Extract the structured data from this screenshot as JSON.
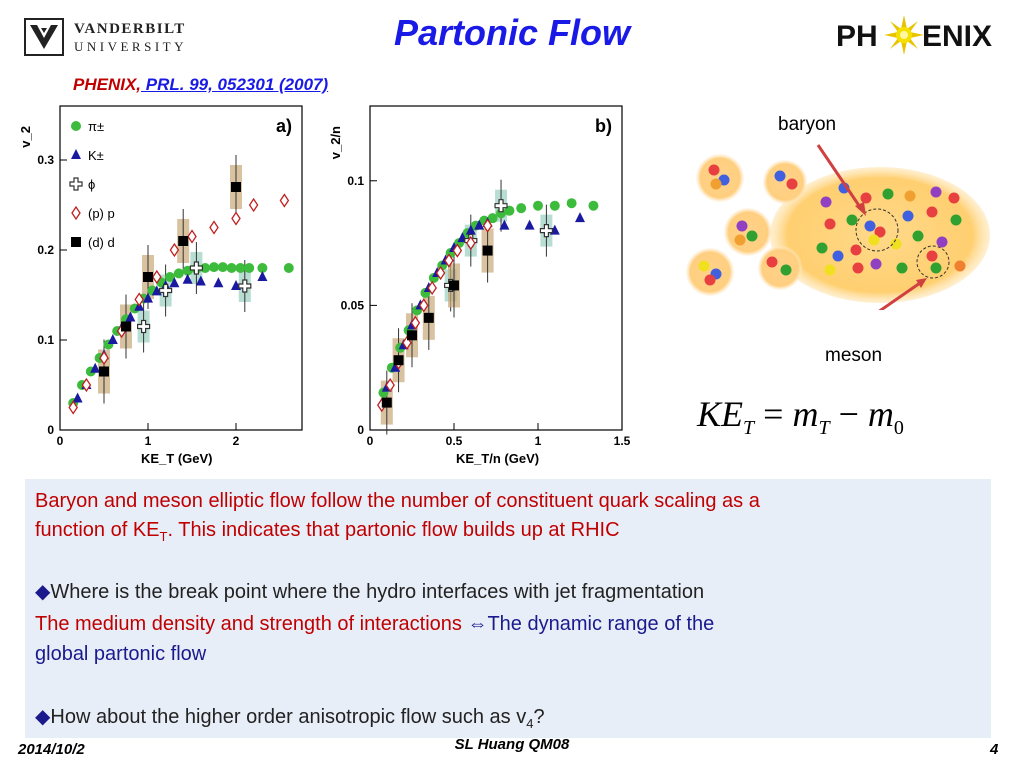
{
  "header": {
    "university_line1": "VANDERBILT",
    "university_line2": "UNIVERSITY",
    "title": "Partonic Flow",
    "phenix_logo_left": "PH",
    "phenix_logo_right": "ENIX",
    "citation_prefix": "PHENIX,",
    "citation_ref": " PRL. 99, 052301 (2007) "
  },
  "colors": {
    "title": "#1a1ae6",
    "accent_red": "#c00000",
    "box_background": "#e8eef8"
  },
  "chart_data": [
    {
      "type": "scatter",
      "panel_label": "a)",
      "xlabel": "KE_T (GeV)",
      "ylabel": "v_2",
      "xlim": [
        0,
        2.75
      ],
      "ylim": [
        0,
        0.36
      ],
      "xticks": [
        "0",
        "1",
        "2"
      ],
      "yticks": [
        "0",
        "0.1",
        "0.2",
        "0.3"
      ],
      "legend_position": "top-left",
      "series": [
        {
          "name": "π±",
          "marker": "circle",
          "color": "#3dbb3d",
          "x": [
            0.15,
            0.25,
            0.35,
            0.45,
            0.55,
            0.65,
            0.75,
            0.85,
            0.95,
            1.05,
            1.15,
            1.25,
            1.35,
            1.45,
            1.55,
            1.65,
            1.75,
            1.85,
            1.95,
            2.05,
            2.15,
            2.3,
            2.6
          ],
          "y": [
            0.03,
            0.05,
            0.065,
            0.08,
            0.095,
            0.11,
            0.123,
            0.135,
            0.146,
            0.155,
            0.164,
            0.17,
            0.174,
            0.177,
            0.179,
            0.18,
            0.181,
            0.181,
            0.18,
            0.18,
            0.18,
            0.18,
            0.18
          ]
        },
        {
          "name": "K±",
          "marker": "triangle",
          "color": "#1a1aa0",
          "x": [
            0.2,
            0.3,
            0.4,
            0.5,
            0.6,
            0.7,
            0.8,
            0.9,
            1.0,
            1.1,
            1.2,
            1.3,
            1.45,
            1.6,
            1.8,
            2.0,
            2.3
          ],
          "y": [
            0.035,
            0.05,
            0.068,
            0.083,
            0.1,
            0.113,
            0.125,
            0.137,
            0.146,
            0.154,
            0.16,
            0.163,
            0.167,
            0.165,
            0.163,
            0.16,
            0.17
          ]
        },
        {
          "name": "ϕ",
          "marker": "cross",
          "color": "#333333",
          "x": [
            0.95,
            1.2,
            1.55,
            2.1
          ],
          "y": [
            0.115,
            0.155,
            0.18,
            0.16
          ]
        },
        {
          "name": "(p) p",
          "marker": "diamond",
          "color": "#c02020",
          "x": [
            0.15,
            0.3,
            0.5,
            0.7,
            0.9,
            1.1,
            1.3,
            1.5,
            1.75,
            2.0,
            2.2,
            2.55
          ],
          "y": [
            0.025,
            0.05,
            0.08,
            0.11,
            0.145,
            0.17,
            0.2,
            0.215,
            0.225,
            0.235,
            0.25,
            0.255
          ]
        },
        {
          "name": "(d) d",
          "marker": "square",
          "color": "#000000",
          "x": [
            0.5,
            0.75,
            1.0,
            1.4,
            2.0
          ],
          "y": [
            0.065,
            0.115,
            0.17,
            0.21,
            0.27
          ]
        }
      ]
    },
    {
      "type": "scatter",
      "panel_label": "b)",
      "xlabel": "KE_T/n (GeV)",
      "ylabel": "v_2/n",
      "xlim": [
        0,
        1.5
      ],
      "ylim": [
        0,
        0.13
      ],
      "xticks": [
        "0",
        "0.5",
        "1",
        "1.5"
      ],
      "yticks": [
        "0",
        "0.05",
        "0.1"
      ],
      "series": [
        {
          "name": "π±",
          "marker": "circle",
          "color": "#3dbb3d",
          "x": [
            0.08,
            0.13,
            0.18,
            0.23,
            0.28,
            0.33,
            0.38,
            0.43,
            0.48,
            0.53,
            0.58,
            0.63,
            0.68,
            0.73,
            0.78,
            0.83,
            0.9,
            1.0,
            1.1,
            1.2,
            1.33
          ],
          "y": [
            0.015,
            0.025,
            0.033,
            0.04,
            0.048,
            0.055,
            0.061,
            0.066,
            0.071,
            0.075,
            0.079,
            0.082,
            0.084,
            0.085,
            0.087,
            0.088,
            0.089,
            0.09,
            0.09,
            0.091,
            0.09
          ]
        },
        {
          "name": "K±",
          "marker": "triangle",
          "color": "#1a1aa0",
          "x": [
            0.1,
            0.15,
            0.2,
            0.25,
            0.3,
            0.35,
            0.4,
            0.45,
            0.5,
            0.55,
            0.6,
            0.65,
            0.7,
            0.8,
            0.95,
            1.1,
            1.25
          ],
          "y": [
            0.017,
            0.025,
            0.034,
            0.042,
            0.05,
            0.057,
            0.063,
            0.068,
            0.073,
            0.077,
            0.08,
            0.082,
            0.083,
            0.082,
            0.082,
            0.08,
            0.085
          ]
        },
        {
          "name": "ϕ",
          "marker": "cross",
          "color": "#333333",
          "x": [
            0.48,
            0.6,
            0.78,
            1.05
          ],
          "y": [
            0.058,
            0.076,
            0.09,
            0.08
          ]
        },
        {
          "name": "(p) p",
          "marker": "diamond",
          "color": "#c02020",
          "x": [
            0.07,
            0.12,
            0.17,
            0.22,
            0.27,
            0.32,
            0.37,
            0.42,
            0.47,
            0.52,
            0.6,
            0.7
          ],
          "y": [
            0.01,
            0.018,
            0.027,
            0.035,
            0.043,
            0.05,
            0.057,
            0.063,
            0.068,
            0.072,
            0.075,
            0.082
          ]
        },
        {
          "name": "(d) d",
          "marker": "square",
          "color": "#000000",
          "x": [
            0.1,
            0.17,
            0.25,
            0.35,
            0.5,
            0.7
          ],
          "y": [
            0.011,
            0.028,
            0.038,
            0.045,
            0.058,
            0.072
          ]
        }
      ]
    }
  ],
  "diagram": {
    "baryon_label": "baryon",
    "meson_label": "meson",
    "formula": {
      "lhs": "KE",
      "lhs_sub": "T",
      "eq": " = ",
      "m1": "m",
      "m1_sub": "T",
      "minus": " − ",
      "m2": "m",
      "m2_sub": "0"
    }
  },
  "textbox": {
    "para1_line1": "Baryon and meson elliptic flow follow the number of constituent quark scaling as a",
    "para1_line2_pre": "function of KE",
    "para1_line2_sub": "T",
    "para1_line2_post": ". This indicates that partonic flow builds up at RHIC",
    "bullet_symbol": "◆",
    "bullet1": "Where is the break point where the hydro interfaces with jet fragmentation",
    "red_line": "The medium density and strength of interactions ",
    "arrow_symbol": "⇔",
    "blue_line": "The dynamic range of the",
    "blue_line2": "global partonic flow",
    "bullet2_pre": "How about the higher order anisotropic flow such as v",
    "bullet2_sub": "4",
    "bullet2_post": "?"
  },
  "footer": {
    "date": "2014/10/2",
    "center": "SL Huang QM08",
    "page": "4"
  }
}
